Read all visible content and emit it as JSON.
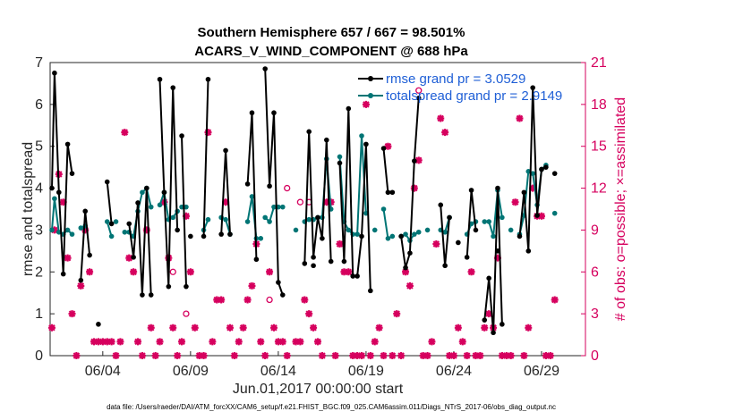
{
  "chart_data": {
    "type": "line",
    "title": "Southern Hemisphere 657 / 667 = 98.501%",
    "subtitle": "ACARS_V_WIND_COMPONENT @ 688 hPa",
    "xlabel": "Jun.01,2017 00:00:00 start",
    "ylabel": "rmse and totalspread",
    "y2label": "# of obs: o=possible; ×=assimilated",
    "footer": "data file: /Users/raeder/DAI/ATM_forcXX/CAM6_setup/f.e21.FHIST_BGC.f09_025.CAM6assim.011/Diags_NTrS_2017-06/obs_diag_output.nc",
    "xlim": [
      1.0,
      31.5
    ],
    "ylim": [
      0,
      7
    ],
    "y2lim": [
      0,
      21
    ],
    "yticks": [
      0,
      1,
      2,
      3,
      4,
      5,
      6,
      7
    ],
    "y2ticks": [
      0,
      3,
      6,
      9,
      12,
      15,
      18,
      21
    ],
    "xticks": [
      {
        "pos": 4,
        "label": "06/04"
      },
      {
        "pos": 9,
        "label": "06/09"
      },
      {
        "pos": 14,
        "label": "06/14"
      },
      {
        "pos": 19,
        "label": "06/19"
      },
      {
        "pos": 24,
        "label": "06/24"
      },
      {
        "pos": 29,
        "label": "06/29"
      }
    ],
    "legend": [
      {
        "name": "rmse grand pr = 3.0529",
        "color": "#000000"
      },
      {
        "name": "totalspread grand pr = 2.9149",
        "color": "#007575"
      }
    ],
    "colors": {
      "rmse": "#000000",
      "spread": "#007575",
      "obs": "#d6005e"
    },
    "rmse_segments": [
      [
        [
          1.1,
          4.0
        ],
        [
          1.25,
          6.75
        ],
        [
          1.5,
          3.9
        ],
        [
          1.75,
          1.95
        ],
        [
          2.0,
          5.05
        ],
        [
          2.25,
          4.35
        ]
      ],
      [
        [
          2.75,
          1.8
        ],
        [
          3.0,
          3.45
        ],
        [
          3.25,
          2.4
        ]
      ],
      [
        [
          4.25,
          4.15
        ],
        [
          4.5,
          3.15
        ]
      ],
      [
        [
          5.5,
          3.15
        ],
        [
          5.75,
          2.35
        ],
        [
          6.0,
          3.65
        ],
        [
          6.25,
          1.45
        ],
        [
          6.5,
          4.0
        ],
        [
          6.75,
          1.45
        ]
      ],
      [
        [
          7.25,
          6.6
        ],
        [
          7.5,
          3.9
        ],
        [
          7.75,
          1.65
        ],
        [
          8.0,
          6.4
        ],
        [
          8.25,
          3.0
        ]
      ],
      [
        [
          8.5,
          5.25
        ],
        [
          8.75,
          1.65
        ]
      ],
      [
        [
          9.75,
          2.85
        ],
        [
          10.0,
          6.6
        ]
      ],
      [
        [
          10.75,
          2.9
        ],
        [
          11.0,
          4.9
        ],
        [
          11.25,
          2.9
        ]
      ],
      [
        [
          12.25,
          4.1
        ],
        [
          12.5,
          5.8
        ],
        [
          12.75,
          2.3
        ]
      ],
      [
        [
          13.25,
          6.85
        ],
        [
          13.5,
          4.05
        ],
        [
          13.75,
          5.8
        ],
        [
          14.0,
          1.75
        ],
        [
          14.25,
          1.45
        ]
      ],
      [
        [
          15.5,
          2.2
        ],
        [
          15.75,
          5.35
        ],
        [
          16.0,
          2.35
        ],
        [
          16.25,
          3.3
        ],
        [
          16.5,
          2.8
        ],
        [
          16.75,
          5.15
        ],
        [
          17.0,
          2.25
        ]
      ],
      [
        [
          17.5,
          4.6
        ],
        [
          17.75,
          2.25
        ],
        [
          18.0,
          5.9
        ],
        [
          18.25,
          1.9
        ],
        [
          18.5,
          1.9
        ],
        [
          18.75,
          2.85
        ],
        [
          19.0,
          5.05
        ],
        [
          19.25,
          1.55
        ]
      ],
      [
        [
          20.0,
          4.95
        ],
        [
          20.25,
          3.9
        ],
        [
          20.5,
          3.9
        ]
      ],
      [
        [
          21.0,
          2.85
        ],
        [
          21.25,
          2.1
        ],
        [
          21.5,
          2.45
        ],
        [
          21.75,
          4.65
        ],
        [
          22.0,
          6.15
        ]
      ],
      [
        [
          23.25,
          3.6
        ],
        [
          23.5,
          2.15
        ],
        [
          23.75,
          3.3
        ]
      ],
      [
        [
          24.25,
          2.7
        ]
      ],
      [
        [
          24.75,
          2.35
        ],
        [
          25.0,
          3.95
        ],
        [
          25.25,
          3.0
        ]
      ],
      [
        [
          25.75,
          0.85
        ],
        [
          26.0,
          1.85
        ],
        [
          26.25,
          0.55
        ],
        [
          26.5,
          4.0
        ],
        [
          26.75,
          0.75
        ]
      ],
      [
        [
          27.75,
          2.85
        ],
        [
          28.0,
          3.9
        ],
        [
          28.25,
          2.5
        ],
        [
          28.5,
          6.4
        ],
        [
          28.75,
          3.35
        ],
        [
          29.0,
          4.45
        ],
        [
          29.25,
          4.5
        ]
      ],
      [
        [
          29.75,
          4.35
        ]
      ]
    ],
    "rmse_points": [
      [
        3.75,
        0.75
      ],
      [
        9.0,
        2.85
      ],
      [
        16.0,
        2.15
      ],
      [
        26.5,
        2.5
      ]
    ],
    "spread_segments": [
      [
        [
          1.1,
          3.0
        ],
        [
          1.25,
          3.75
        ],
        [
          1.5,
          2.95
        ],
        [
          1.75,
          2.9
        ],
        [
          2.0,
          3.0
        ],
        [
          2.25,
          2.9
        ]
      ],
      [
        [
          2.75,
          3.05
        ],
        [
          3.0,
          3.1
        ]
      ],
      [
        [
          4.25,
          3.2
        ],
        [
          4.5,
          2.85
        ]
      ],
      [
        [
          5.5,
          2.95
        ],
        [
          5.75,
          2.85
        ],
        [
          6.0,
          3.45
        ],
        [
          6.25,
          3.9
        ],
        [
          6.5,
          4.0
        ],
        [
          6.75,
          3.55
        ]
      ],
      [
        [
          7.25,
          3.6
        ],
        [
          7.5,
          3.9
        ],
        [
          7.75,
          3.25
        ],
        [
          8.0,
          3.3
        ],
        [
          8.25,
          3.45
        ]
      ],
      [
        [
          8.5,
          3.55
        ],
        [
          8.75,
          3.55
        ]
      ],
      [
        [
          9.75,
          3.0
        ],
        [
          10.0,
          3.25
        ]
      ],
      [
        [
          10.75,
          3.3
        ],
        [
          11.0,
          3.25
        ],
        [
          11.25,
          2.9
        ]
      ],
      [
        [
          12.25,
          3.2
        ],
        [
          12.5,
          3.8
        ],
        [
          12.75,
          2.8
        ],
        [
          13.0,
          2.8
        ]
      ],
      [
        [
          13.25,
          3.3
        ],
        [
          13.5,
          3.2
        ],
        [
          13.75,
          3.55
        ],
        [
          14.0,
          3.55
        ],
        [
          14.25,
          3.55
        ]
      ],
      [
        [
          15.5,
          3.2
        ],
        [
          15.75,
          3.25
        ],
        [
          16.0,
          3.25
        ],
        [
          16.25,
          3.3
        ],
        [
          16.5,
          3.3
        ],
        [
          16.75,
          4.7
        ],
        [
          17.0,
          3.5
        ]
      ],
      [
        [
          17.5,
          4.75
        ],
        [
          17.75,
          3.2
        ],
        [
          18.0,
          3.0
        ],
        [
          18.25,
          2.9
        ],
        [
          18.5,
          2.9
        ],
        [
          18.75,
          5.25
        ],
        [
          19.0,
          3.4
        ]
      ],
      [
        [
          20.0,
          3.5
        ],
        [
          20.25,
          2.8
        ],
        [
          20.5,
          2.85
        ]
      ],
      [
        [
          21.0,
          2.85
        ],
        [
          21.25,
          2.9
        ],
        [
          21.5,
          2.75
        ],
        [
          21.75,
          2.9
        ],
        [
          22.0,
          2.95
        ]
      ],
      [
        [
          23.25,
          3.0
        ],
        [
          23.5,
          2.95
        ],
        [
          23.75,
          3.3
        ]
      ],
      [
        [
          24.75,
          2.9
        ],
        [
          25.0,
          3.15
        ],
        [
          25.25,
          3.2
        ]
      ],
      [
        [
          25.75,
          3.2
        ],
        [
          26.0,
          3.2
        ],
        [
          26.25,
          2.85
        ],
        [
          26.5,
          3.95
        ],
        [
          26.75,
          3.3
        ]
      ],
      [
        [
          27.75,
          2.9
        ],
        [
          28.0,
          3.35
        ],
        [
          28.25,
          4.4
        ],
        [
          28.5,
          4.35
        ],
        [
          28.75,
          3.6
        ],
        [
          29.0,
          4.45
        ],
        [
          29.25,
          4.55
        ]
      ],
      [
        [
          29.75,
          3.4
        ]
      ]
    ],
    "spread_points": [
      [
        4.75,
        3.2
      ],
      [
        5.25,
        2.95
      ],
      [
        19.5,
        3.0
      ],
      [
        22.5,
        3.0
      ],
      [
        27.25,
        3.0
      ],
      [
        15.0,
        3.0
      ]
    ],
    "obs_assimilated": [
      [
        1.1,
        2
      ],
      [
        1.25,
        9
      ],
      [
        1.5,
        13
      ],
      [
        1.75,
        11
      ],
      [
        2.0,
        7
      ],
      [
        2.25,
        3
      ],
      [
        2.5,
        0
      ],
      [
        2.75,
        5
      ],
      [
        3.0,
        9
      ],
      [
        3.25,
        6
      ],
      [
        3.5,
        1
      ],
      [
        3.75,
        1
      ],
      [
        4.0,
        1
      ],
      [
        4.25,
        1
      ],
      [
        4.5,
        1
      ],
      [
        4.75,
        0
      ],
      [
        5.0,
        1
      ],
      [
        5.25,
        16
      ],
      [
        5.5,
        7
      ],
      [
        5.75,
        6
      ],
      [
        6.0,
        1
      ],
      [
        6.25,
        0
      ],
      [
        6.5,
        9
      ],
      [
        6.75,
        2
      ],
      [
        7.0,
        0
      ],
      [
        7.25,
        1
      ],
      [
        7.5,
        11
      ],
      [
        7.75,
        7
      ],
      [
        8.0,
        2
      ],
      [
        8.25,
        0
      ],
      [
        8.5,
        1
      ],
      [
        8.75,
        10
      ],
      [
        9.0,
        6
      ],
      [
        9.25,
        2
      ],
      [
        9.5,
        0
      ],
      [
        9.75,
        0
      ],
      [
        10.0,
        16
      ],
      [
        10.25,
        1
      ],
      [
        10.5,
        4
      ],
      [
        10.75,
        4
      ],
      [
        11.0,
        11
      ],
      [
        11.25,
        2
      ],
      [
        11.5,
        0
      ],
      [
        11.75,
        1
      ],
      [
        12.0,
        2
      ],
      [
        12.25,
        4
      ],
      [
        12.5,
        5
      ],
      [
        12.75,
        8
      ],
      [
        13.0,
        1
      ],
      [
        13.25,
        0
      ],
      [
        13.5,
        6
      ],
      [
        13.75,
        2
      ],
      [
        14.0,
        1
      ],
      [
        14.25,
        1
      ],
      [
        14.5,
        0
      ],
      [
        15.0,
        1
      ],
      [
        15.25,
        1
      ],
      [
        15.5,
        4
      ],
      [
        15.75,
        3
      ],
      [
        16.0,
        2
      ],
      [
        16.25,
        1
      ],
      [
        16.5,
        0
      ],
      [
        16.75,
        11
      ],
      [
        17.0,
        11
      ],
      [
        17.25,
        0
      ],
      [
        17.5,
        8
      ],
      [
        17.75,
        6
      ],
      [
        18.0,
        6
      ],
      [
        18.25,
        0
      ],
      [
        18.5,
        0
      ],
      [
        18.75,
        0
      ],
      [
        19.0,
        18
      ],
      [
        19.25,
        0
      ],
      [
        19.5,
        1
      ],
      [
        19.75,
        2
      ],
      [
        20.0,
        0
      ],
      [
        20.25,
        15
      ],
      [
        20.5,
        0
      ],
      [
        20.75,
        3
      ],
      [
        21.0,
        0
      ],
      [
        21.25,
        6
      ],
      [
        21.5,
        5
      ],
      [
        21.75,
        12
      ],
      [
        22.0,
        14
      ],
      [
        22.25,
        0
      ],
      [
        22.5,
        0
      ],
      [
        22.75,
        1
      ],
      [
        23.0,
        8
      ],
      [
        23.25,
        17
      ],
      [
        23.5,
        16
      ],
      [
        23.75,
        0
      ],
      [
        24.0,
        0
      ],
      [
        24.25,
        2
      ],
      [
        24.5,
        1
      ],
      [
        24.75,
        0
      ],
      [
        25.0,
        6
      ],
      [
        25.25,
        0
      ],
      [
        25.5,
        0
      ],
      [
        25.75,
        2
      ],
      [
        26.0,
        3
      ],
      [
        26.25,
        2
      ],
      [
        26.5,
        7
      ],
      [
        26.75,
        0
      ],
      [
        27.0,
        0
      ],
      [
        27.25,
        0
      ],
      [
        27.5,
        11
      ],
      [
        27.75,
        17
      ],
      [
        28.0,
        0
      ],
      [
        28.25,
        2
      ],
      [
        28.5,
        12
      ],
      [
        28.75,
        10
      ],
      [
        29.0,
        10
      ],
      [
        29.25,
        0
      ],
      [
        29.5,
        0
      ],
      [
        29.75,
        4
      ]
    ],
    "obs_possible": [
      [
        8.0,
        6
      ],
      [
        8.75,
        3
      ],
      [
        13.5,
        4
      ],
      [
        14.5,
        12
      ],
      [
        15.25,
        11
      ],
      [
        15.75,
        11
      ],
      [
        22.0,
        19
      ]
    ]
  }
}
